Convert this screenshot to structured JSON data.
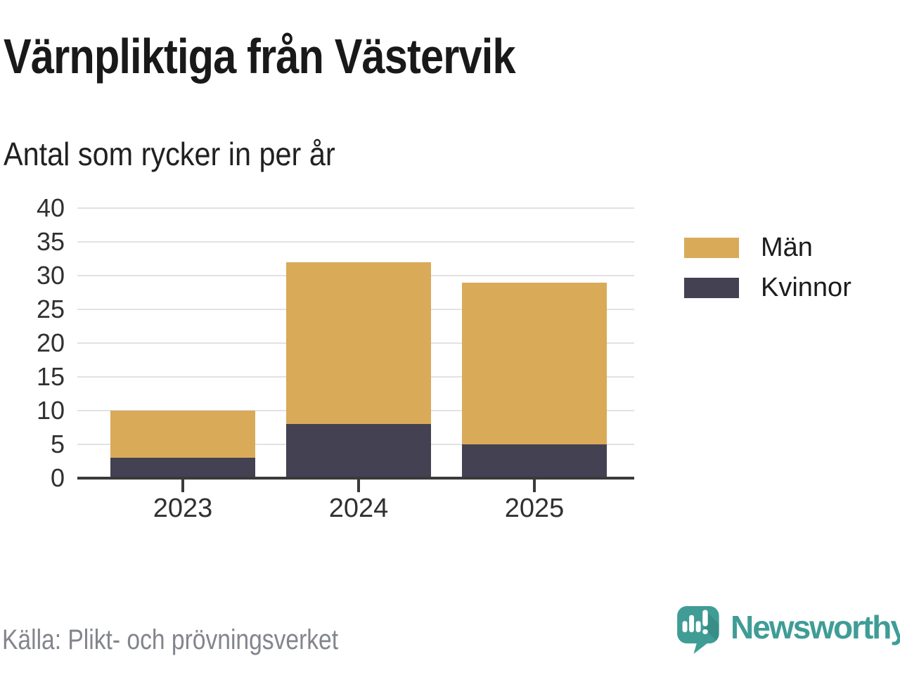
{
  "header": {
    "title": "Värnpliktiga från Västervik",
    "subtitle": "Antal som rycker in per år"
  },
  "chart_data": {
    "type": "bar",
    "stacked": true,
    "title": "Värnpliktiga från Västervik",
    "subtitle": "Antal som rycker in per år",
    "categories": [
      "2023",
      "2024",
      "2025"
    ],
    "series": [
      {
        "name": "Kvinnor",
        "color": "#434152",
        "values": [
          3,
          8,
          5
        ]
      },
      {
        "name": "Män",
        "color": "#d9aa58",
        "values": [
          7,
          24,
          24
        ]
      }
    ],
    "totals": [
      10,
      32,
      29
    ],
    "xlabel": "",
    "ylabel": "",
    "ylim": [
      0,
      40
    ],
    "yticks": [
      0,
      5,
      10,
      15,
      20,
      25,
      30,
      35,
      40
    ],
    "grid": true,
    "legend_position": "right",
    "legend_order": [
      "Män",
      "Kvinnor"
    ]
  },
  "legend": {
    "items": [
      {
        "label": "Män",
        "color": "#d9aa58"
      },
      {
        "label": "Kvinnor",
        "color": "#434152"
      }
    ]
  },
  "footer": {
    "source": "Källa: Plikt- och prövningsverket",
    "logo_text": "Newsworthy",
    "logo_icon": "newsworthy-speech-bubble-chart-icon"
  },
  "colors": {
    "men": "#d9aa58",
    "women": "#434152",
    "grid": "#e2e2e2",
    "axis": "#3a3a3a",
    "text": "#191919",
    "muted": "#83858d",
    "brand": "#3f9d96"
  }
}
